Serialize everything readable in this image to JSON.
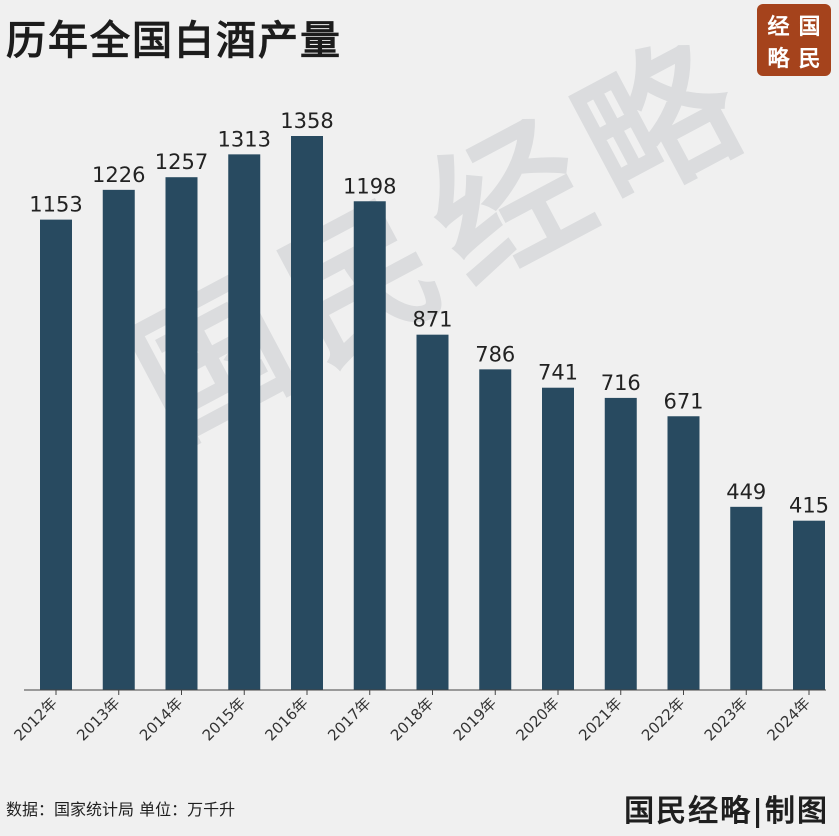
{
  "header": {
    "title": "历年全国白酒产量"
  },
  "logo": {
    "chars": [
      "经",
      "国",
      "略",
      "民"
    ],
    "color": "#a5431c"
  },
  "watermark": "国民经略",
  "footer": {
    "source": "数据：国家统计局  单位：万千升",
    "brand": "国民经略|制图"
  },
  "chart_data": {
    "type": "bar",
    "title": "历年全国白酒产量",
    "categories": [
      "2012年",
      "2013年",
      "2014年",
      "2015年",
      "2016年",
      "2017年",
      "2018年",
      "2019年",
      "2020年",
      "2021年",
      "2022年",
      "2023年",
      "2024年"
    ],
    "values": [
      1153,
      1226,
      1257,
      1313,
      1358,
      1198,
      871,
      786,
      741,
      716,
      671,
      449,
      415
    ],
    "ylim": [
      0,
      1358
    ],
    "grid": false,
    "bar_color": "#284a60",
    "xlabel": "",
    "ylabel": ""
  }
}
